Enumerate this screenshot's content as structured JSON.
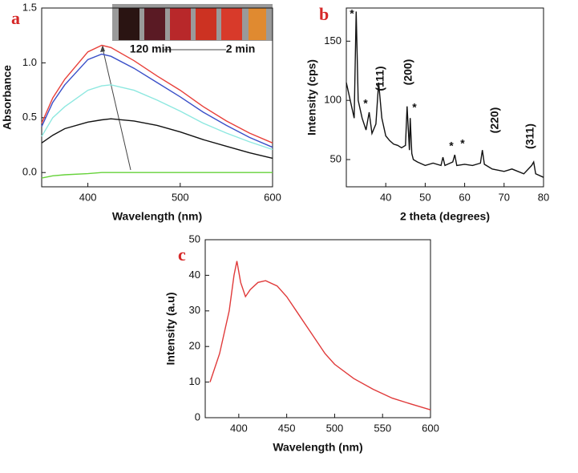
{
  "chart_data": [
    {
      "type": "line",
      "panel_label": "a",
      "xlabel": "Wavelength (nm)",
      "ylabel": "Absorbance",
      "x": [
        350,
        362,
        375,
        400,
        415,
        425,
        450,
        475,
        500,
        525,
        550,
        575,
        600
      ],
      "series": [
        {
          "color": "#e8403a",
          "values": [
            0.45,
            0.68,
            0.85,
            1.1,
            1.16,
            1.14,
            1.02,
            0.88,
            0.75,
            0.6,
            0.47,
            0.36,
            0.27
          ]
        },
        {
          "color": "#3a4fc8",
          "values": [
            0.42,
            0.64,
            0.8,
            1.03,
            1.08,
            1.06,
            0.95,
            0.82,
            0.69,
            0.55,
            0.43,
            0.32,
            0.23
          ]
        },
        {
          "color": "#8ee8e0",
          "values": [
            0.33,
            0.5,
            0.6,
            0.75,
            0.79,
            0.8,
            0.75,
            0.66,
            0.56,
            0.45,
            0.36,
            0.28,
            0.21
          ]
        },
        {
          "color": "#111111",
          "values": [
            0.27,
            0.34,
            0.4,
            0.46,
            0.48,
            0.49,
            0.47,
            0.43,
            0.37,
            0.3,
            0.24,
            0.18,
            0.13
          ]
        },
        {
          "color": "#66d23a",
          "values": [
            -0.05,
            -0.03,
            -0.02,
            -0.01,
            0,
            0,
            0,
            0,
            0,
            0,
            0,
            0,
            0
          ]
        }
      ],
      "xlim": [
        350,
        600
      ],
      "xticks": [
        400,
        500,
        600
      ],
      "ylim": [
        -0.13,
        1.5
      ],
      "yticks": [
        {
          "value": 0,
          "label": "0.0"
        },
        0.5,
        {
          "value": 1,
          "label": "1.0"
        },
        1.5
      ],
      "annotations": [
        "120 min",
        "2 min"
      ]
    },
    {
      "type": "line",
      "panel_label": "b",
      "xlabel": "2 theta (degrees)",
      "ylabel": "Intensity (cps)",
      "x": [
        30,
        31,
        32,
        32.5,
        33,
        34,
        35,
        35.8,
        36.5,
        37.5,
        38.2,
        39,
        40,
        41,
        42,
        43,
        44,
        45,
        45.4,
        46,
        46.2,
        46.6,
        47,
        48,
        50,
        52,
        54,
        54.5,
        55,
        57,
        57.5,
        58,
        60,
        62,
        64,
        64.5,
        65,
        67,
        70,
        72,
        75,
        77,
        77.5,
        78,
        80
      ],
      "values": [
        115,
        100,
        85,
        175,
        100,
        85,
        75,
        90,
        72,
        80,
        115,
        85,
        70,
        66,
        63,
        62,
        60,
        62,
        95,
        58,
        85,
        55,
        50,
        48,
        45,
        47,
        45,
        52,
        45,
        48,
        54,
        45,
        46,
        45,
        47,
        58,
        46,
        42,
        40,
        42,
        38,
        45,
        48,
        38,
        35
      ],
      "color": "#111111",
      "xlim": [
        30,
        80
      ],
      "xticks": [
        40,
        50,
        60,
        70,
        80
      ],
      "ylim": [
        27,
        178
      ],
      "yticks": [
        50,
        100,
        150
      ],
      "annotations": [
        "*",
        "(111)",
        "*",
        "(200)",
        "*",
        "*",
        "*",
        "(220)",
        "(311)"
      ]
    },
    {
      "type": "line",
      "panel_label": "c",
      "xlabel": "Wavelength (nm)",
      "ylabel": "Intensity (a.u)",
      "x": [
        370,
        380,
        390,
        395,
        398,
        402,
        407,
        412,
        420,
        428,
        440,
        450,
        460,
        475,
        490,
        500,
        520,
        540,
        560,
        580,
        600
      ],
      "values": [
        10,
        18,
        30,
        40,
        44,
        38,
        34,
        36,
        38,
        38.5,
        37,
        34,
        30,
        24,
        18,
        15,
        11,
        8,
        5.5,
        3.8,
        2.2
      ],
      "color": "#e03a3a",
      "xlim": [
        365,
        600
      ],
      "xticks": [
        400,
        450,
        500,
        550,
        600
      ],
      "ylim": [
        0,
        50
      ],
      "yticks": [
        0,
        10,
        20,
        30,
        40,
        50
      ]
    }
  ]
}
